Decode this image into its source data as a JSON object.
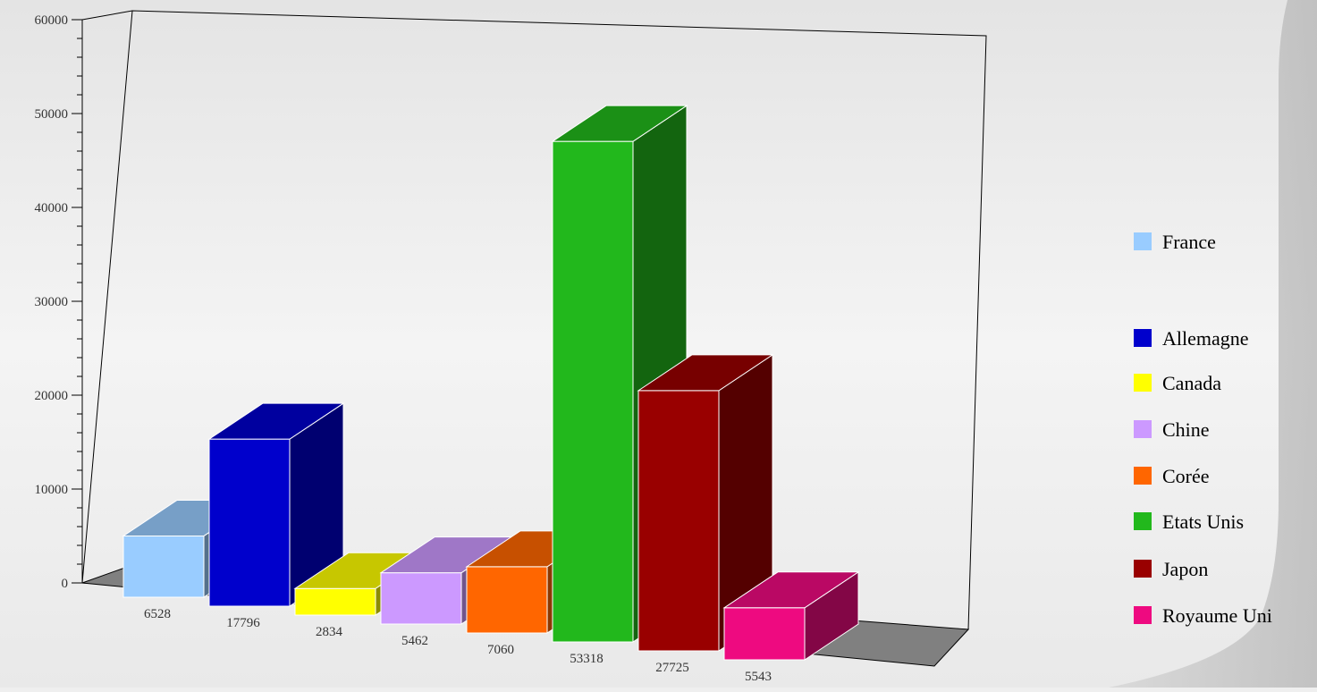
{
  "chart_data": {
    "type": "bar",
    "title": "",
    "xlabel": "",
    "ylabel": "",
    "ylim": [
      0,
      60000
    ],
    "yticks": [
      0,
      10000,
      20000,
      30000,
      40000,
      50000,
      60000
    ],
    "grid": false,
    "legend_position": "right",
    "categories": [
      "France",
      "Allemagne",
      "Canada",
      "Chine",
      "Corée",
      "Etats Unis",
      "Japon",
      "Royaume Uni"
    ],
    "values": [
      6528,
      17796,
      2834,
      5462,
      7060,
      53318,
      27725,
      5543
    ],
    "value_labels": [
      "6528",
      "17796",
      "2834",
      "5462",
      "7060",
      "53318",
      "27725",
      "5543"
    ],
    "colors": [
      "#99ccff",
      "#0000cc",
      "#ffff00",
      "#cc99ff",
      "#ff6600",
      "#22b81c",
      "#990000",
      "#ee0a80"
    ]
  }
}
